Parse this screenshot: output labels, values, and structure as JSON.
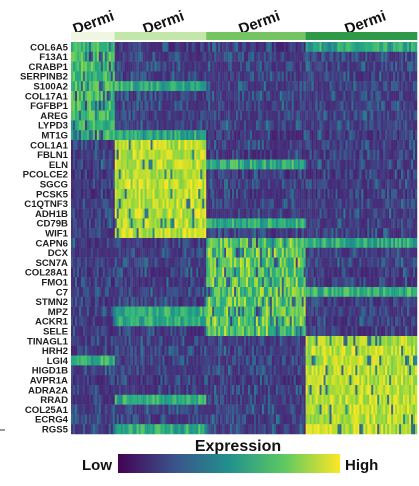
{
  "chart_data": {
    "type": "heatmap",
    "clusters": [
      {
        "label": "Dermi",
        "color": "#eff7e3",
        "columns": 22
      },
      {
        "label": "Dermi",
        "color": "#c3e6a9",
        "columns": 46
      },
      {
        "label": "Dermi",
        "color": "#74c461",
        "columns": 50
      },
      {
        "label": "Dermi",
        "color": "#2e9a47",
        "columns": 56
      }
    ],
    "genes": [
      "COL6A5",
      "F13A1",
      "CRABP1",
      "SERPINB2",
      "S100A2",
      "COL17A1",
      "FGFBP1",
      "AREG",
      "LYPD3",
      "MT1G",
      "COL1A1",
      "FBLN1",
      "ELN",
      "PCOLCE2",
      "SGCG",
      "PCSK5",
      "C1QTNF3",
      "ADH1B",
      "CD79B",
      "WIF1",
      "CAPN6",
      "DCX",
      "SCN7A",
      "COL28A1",
      "FMO1",
      "C7",
      "STMN2",
      "MPZ",
      "ACKR1",
      "SELE",
      "TINAGL1",
      "HRH2",
      "LGI4",
      "HIGD1B",
      "AVPR1A",
      "ADRA2A",
      "RRAD",
      "COL25A1",
      "ECRG4",
      "RGS5"
    ],
    "gene_cluster": [
      0,
      0,
      0,
      0,
      0,
      0,
      0,
      0,
      0,
      0,
      1,
      1,
      1,
      1,
      1,
      1,
      1,
      1,
      1,
      1,
      2,
      2,
      2,
      2,
      2,
      2,
      2,
      2,
      2,
      2,
      3,
      3,
      3,
      3,
      3,
      3,
      3,
      3,
      3,
      3
    ],
    "expression_scale": {
      "colormap": "viridis",
      "min_label": "Low",
      "max_label": "High"
    }
  },
  "legend": {
    "title": "Expression",
    "low": "Low",
    "high": "High"
  },
  "colors": {
    "low": "#440154",
    "mid": "#21918c",
    "high": "#fde725"
  }
}
